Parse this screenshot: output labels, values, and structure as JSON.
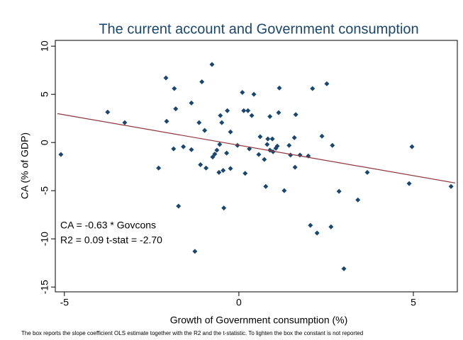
{
  "chart_data": {
    "type": "scatter",
    "title": "The current account and Government consumption",
    "x_label": "Growth of Government consumption (%)",
    "y_label": "CA (% of GDP)",
    "annotations": [
      "CA = -0.63 * Govcons",
      "R2 = 0.09  t-stat = -2.70"
    ],
    "note": "The box reports the slope coefficient OLS estimate together with the R2 and the t-statistic. To lighten the box the constant is not reported",
    "color": "#1a476f",
    "fit_color": "#90353b",
    "x": [
      -5.1,
      -3.76,
      -3.27,
      -2.3,
      -2.09,
      -2.07,
      -1.85,
      -1.81,
      -1.87,
      -1.73,
      -1.59,
      -1.36,
      -1.36,
      -1.26,
      -1.14,
      -1.06,
      -1.1,
      -0.98,
      -0.94,
      -0.75,
      -0.77,
      -0.69,
      -0.63,
      -0.57,
      -0.55,
      -0.53,
      -0.49,
      -0.45,
      -0.43,
      -0.35,
      -0.33,
      -0.24,
      -0.24,
      -0.04,
      0.1,
      0.14,
      0.18,
      0.26,
      0.3,
      0.37,
      0.43,
      0.57,
      0.61,
      0.73,
      0.77,
      0.81,
      0.83,
      0.89,
      0.89,
      0.96,
      0.98,
      1.06,
      1.1,
      1.14,
      1.16,
      1.3,
      1.44,
      1.48,
      1.59,
      1.61,
      1.63,
      1.75,
      1.99,
      2.05,
      2.11,
      2.24,
      2.38,
      2.52,
      2.64,
      2.68,
      2.87,
      3.01,
      3.41,
      3.68,
      4.88,
      4.96,
      6.08
    ],
    "y": [
      -1.25,
      3.16,
      2.06,
      -2.65,
      6.7,
      2.2,
      5.6,
      3.5,
      -0.66,
      -6.6,
      -0.44,
      4.1,
      -0.74,
      -11.3,
      2.06,
      6.3,
      -2.3,
      1.25,
      -2.65,
      -1.5,
      8.1,
      -1.2,
      -0.8,
      -3.1,
      -0.2,
      2.8,
      2.06,
      -2.9,
      -6.8,
      -1.1,
      3.3,
      1.1,
      -2.7,
      -0.3,
      5.2,
      3.3,
      -3.2,
      3.3,
      -0.66,
      2.8,
      5.0,
      -1.25,
      0.6,
      -1.76,
      -4.56,
      -0.2,
      0.37,
      -0.8,
      2.7,
      0.37,
      -0.96,
      -0.6,
      -0.37,
      3.1,
      5.66,
      -5.0,
      -0.3,
      -1.3,
      0.5,
      -2.57,
      2.9,
      -1.3,
      -1.4,
      -8.6,
      5.6,
      -9.4,
      0.66,
      6.1,
      -8.75,
      -0.3,
      -5.07,
      -13.1,
      -5.96,
      -3.1,
      -4.26,
      -0.44,
      -4.56
    ],
    "fit_line": {
      "x": [
        -5.2,
        6.2
      ],
      "y": [
        3.0,
        -4.2
      ]
    },
    "xlim": [
      -5.26,
      6.26
    ],
    "ylim": [
      -15.5,
      10.6
    ],
    "xticks": [
      -5,
      0,
      5
    ],
    "yticks": [
      -15,
      -10,
      -5,
      0,
      5,
      10
    ],
    "grid": false
  }
}
